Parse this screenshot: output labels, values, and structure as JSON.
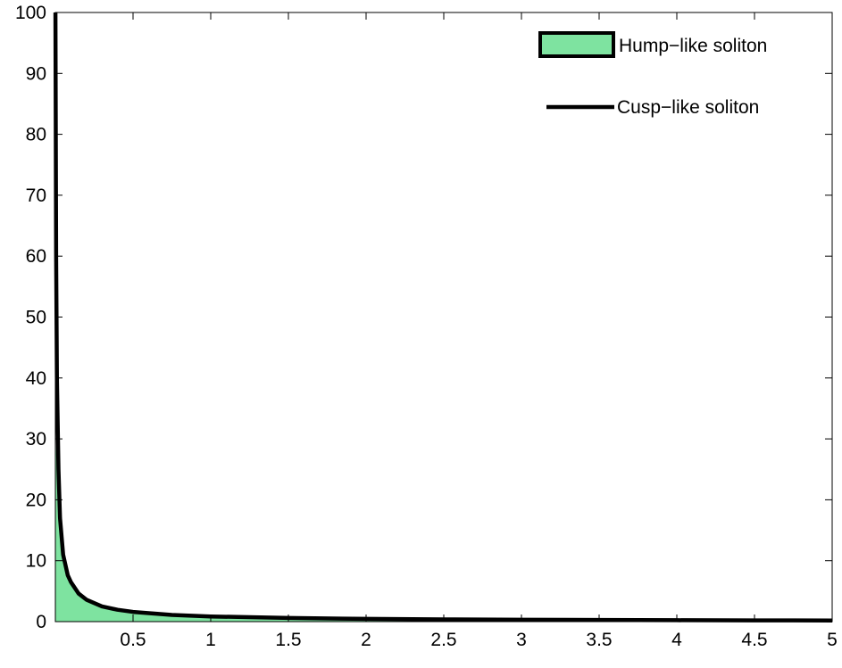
{
  "chart_data": {
    "type": "area",
    "title": "",
    "xlabel": "",
    "ylabel": "",
    "xlim": [
      0,
      5
    ],
    "ylim": [
      0,
      100
    ],
    "grid": false,
    "legend_position": "top-right",
    "x_ticks": [
      0.5,
      1,
      1.5,
      2,
      2.5,
      3,
      3.5,
      4,
      4.5,
      5
    ],
    "x_tick_labels": [
      "0.5",
      "1",
      "1.5",
      "2",
      "2.5",
      "3",
      "3.5",
      "4",
      "4.5",
      "5"
    ],
    "y_ticks": [
      0,
      10,
      20,
      30,
      40,
      50,
      60,
      70,
      80,
      90,
      100
    ],
    "y_tick_labels": [
      "0",
      "10",
      "20",
      "30",
      "40",
      "50",
      "60",
      "70",
      "80",
      "90",
      "100"
    ],
    "series": [
      {
        "name": "Hump−like soliton",
        "style": "filled-area",
        "color": "#7ee3a0",
        "edge_color": "#000000",
        "x": [
          0.001,
          0.02,
          0.05,
          0.1,
          0.15,
          0.2,
          0.3,
          0.4,
          0.5,
          0.75,
          1,
          1.5,
          2,
          2.5,
          3,
          3.5,
          4,
          4.5,
          5
        ],
        "y": [
          30,
          20,
          11,
          6.5,
          4.6,
          3.6,
          2.5,
          1.95,
          1.6,
          1.1,
          0.85,
          0.6,
          0.45,
          0.37,
          0.31,
          0.27,
          0.23,
          0.21,
          0.19
        ]
      },
      {
        "name": "Cusp−like soliton",
        "style": "line",
        "color": "#000000",
        "x": [
          0.0005,
          0.005,
          0.01,
          0.02,
          0.03,
          0.05,
          0.08,
          0.1,
          0.15,
          0.2,
          0.3,
          0.4,
          0.5,
          0.75,
          1,
          1.5,
          2,
          2.5,
          3,
          3.5,
          4,
          4.5,
          5
        ],
        "y": [
          100,
          60,
          40,
          25,
          17,
          11,
          7.6,
          6.5,
          4.6,
          3.6,
          2.5,
          1.95,
          1.6,
          1.1,
          0.85,
          0.6,
          0.45,
          0.37,
          0.31,
          0.27,
          0.23,
          0.21,
          0.19
        ]
      }
    ]
  }
}
